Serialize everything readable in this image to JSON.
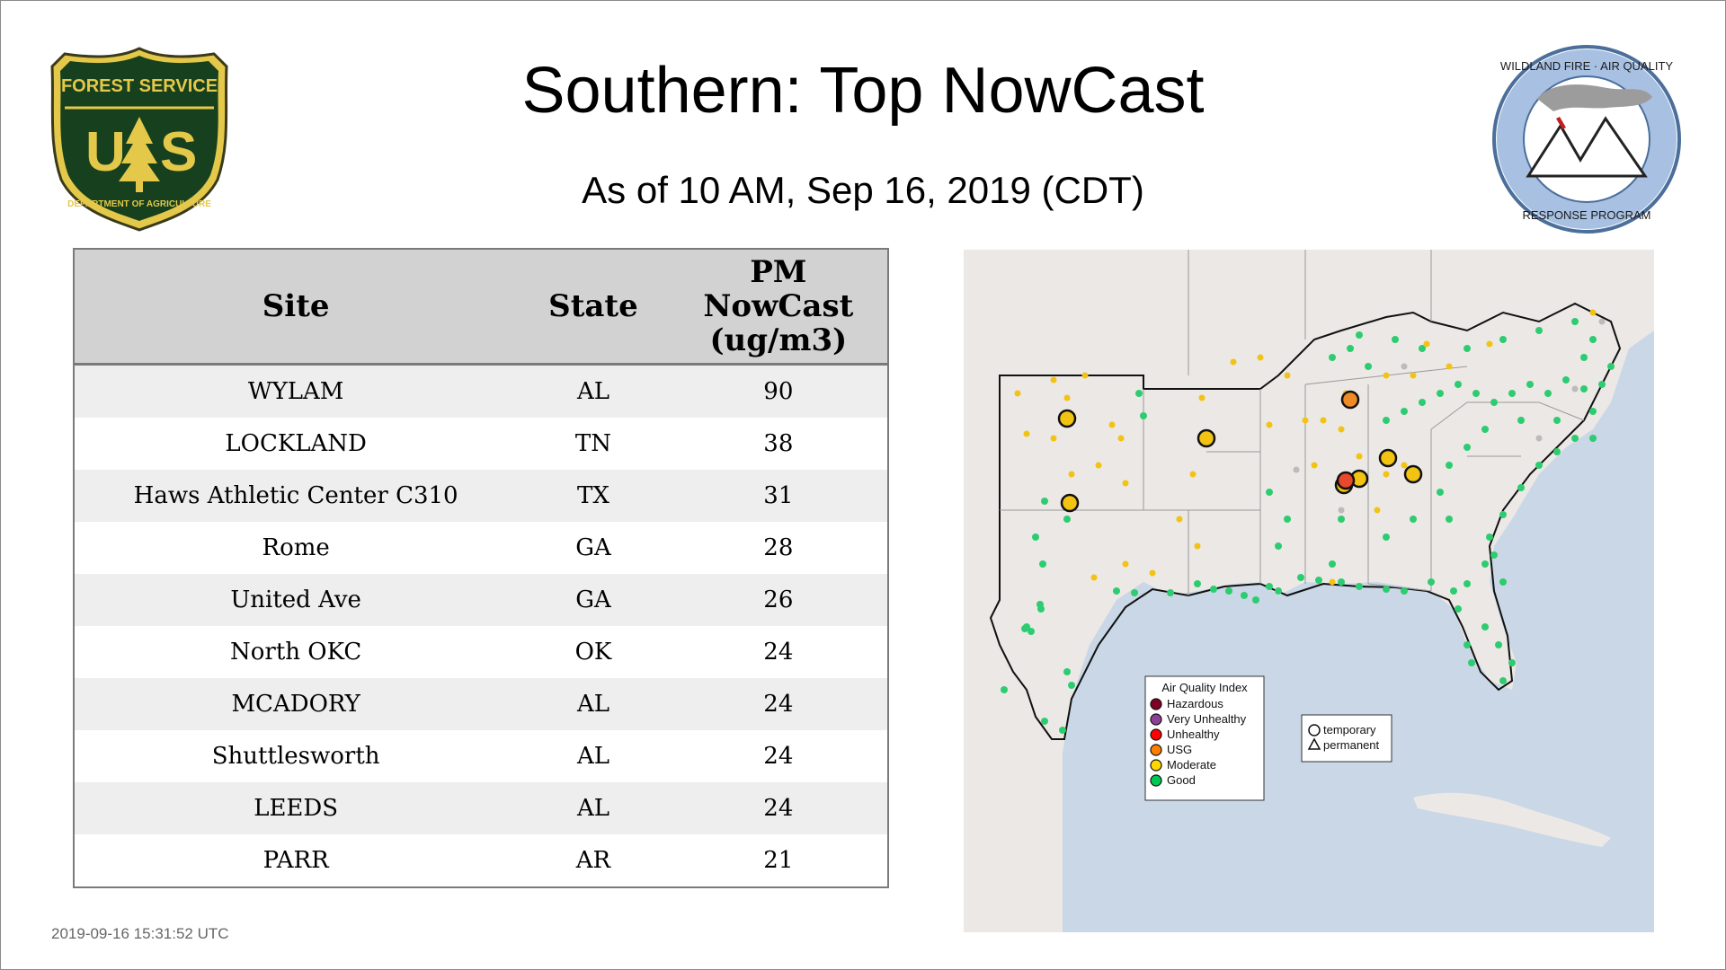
{
  "header": {
    "title": "Southern: Top NowCast",
    "subtitle": "As of 10 AM, Sep 16, 2019 (CDT)"
  },
  "logos": {
    "left": {
      "top_text": "FOREST SERVICE",
      "letters": "US",
      "bottom_text": "DEPARTMENT OF AGRICULTURE"
    },
    "right": {
      "top_text": "WILDLAND FIRE · AIR QUALITY",
      "bottom_text": "RESPONSE PROGRAM"
    }
  },
  "table": {
    "headers": {
      "site": "Site",
      "state": "State",
      "pm_line1": "PM",
      "pm_line2": "NowCast",
      "pm_line3": "(ug/m3)"
    },
    "rows": [
      {
        "site": "WYLAM",
        "state": "AL",
        "pm": "90"
      },
      {
        "site": "LOCKLAND",
        "state": "TN",
        "pm": "38"
      },
      {
        "site": "Haws Athletic Center C310",
        "state": "TX",
        "pm": "31"
      },
      {
        "site": "Rome",
        "state": "GA",
        "pm": "28"
      },
      {
        "site": "United Ave",
        "state": "GA",
        "pm": "26"
      },
      {
        "site": "North OKC",
        "state": "OK",
        "pm": "24"
      },
      {
        "site": "MCADORY",
        "state": "AL",
        "pm": "24"
      },
      {
        "site": "Shuttlesworth",
        "state": "AL",
        "pm": "24"
      },
      {
        "site": "LEEDS",
        "state": "AL",
        "pm": "24"
      },
      {
        "site": "PARR",
        "state": "AR",
        "pm": "21"
      }
    ]
  },
  "map": {
    "legend": {
      "title": "Air Quality Index",
      "items": [
        {
          "label": "Hazardous",
          "color": "#7e0023"
        },
        {
          "label": "Very Unhealthy",
          "color": "#8f3f97"
        },
        {
          "label": "Unhealthy",
          "color": "#ff0000"
        },
        {
          "label": "USG",
          "color": "#ff7e00"
        },
        {
          "label": "Moderate",
          "color": "#ffd700"
        },
        {
          "label": "Good",
          "color": "#00c853"
        }
      ]
    },
    "shape_legend": {
      "temporary": "temporary",
      "permanent": "permanent"
    },
    "colors": {
      "water": "#c9d7e6",
      "land": "#ece8e6",
      "good": "#2ecc71",
      "moderate": "#f2c313",
      "usg": "#f08a24",
      "unhealthy": "#e8482c",
      "no_data": "#bbbbbb"
    }
  },
  "footer": {
    "timestamp": "2019-09-16 15:31:52 UTC"
  }
}
